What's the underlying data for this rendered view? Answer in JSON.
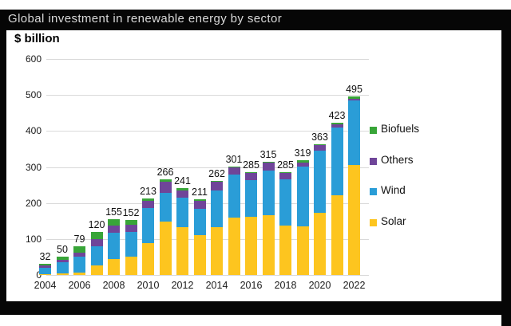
{
  "title_bar": {
    "title": "Global investment in renewable energy by sector"
  },
  "chart": {
    "unit_label": "$ billion",
    "colors": {
      "solar": "#fdc51f",
      "wind": "#2a9dd7",
      "others": "#6f4599",
      "biofuels": "#38a538",
      "gridline": "#d9d9d9",
      "title_text": "#d9d9d9",
      "frame": "#060606"
    }
  },
  "chart_data": {
    "type": "bar",
    "stacked": true,
    "title": "Global investment in renewable energy by sector",
    "unit": "$ billion",
    "xlabel": "",
    "ylabel": "$ billion",
    "ylim": [
      0,
      600
    ],
    "y_tick_step": 100,
    "y_ticks": [
      0,
      100,
      200,
      300,
      400,
      500,
      600
    ],
    "grid": true,
    "legend_position": "right",
    "legend_order": [
      "Biofuels",
      "Others",
      "Wind",
      "Solar"
    ],
    "categories": [
      2004,
      2005,
      2006,
      2007,
      2008,
      2009,
      2010,
      2011,
      2012,
      2013,
      2014,
      2015,
      2016,
      2017,
      2018,
      2019,
      2020,
      2021,
      2022
    ],
    "x_axis_labeled_years": [
      2004,
      2006,
      2008,
      2010,
      2012,
      2014,
      2016,
      2018,
      2020,
      2022
    ],
    "totals": [
      32,
      50,
      79,
      120,
      155,
      152,
      213,
      266,
      241,
      211,
      262,
      301,
      285,
      315,
      285,
      319,
      363,
      423,
      495
    ],
    "series": [
      {
        "name": "Solar",
        "color_key": "solar",
        "values": [
          3,
          5,
          7,
          26,
          44,
          52,
          89,
          148,
          133,
          110,
          133,
          159,
          161,
          166,
          137,
          134,
          172,
          221,
          305
        ]
      },
      {
        "name": "Wind",
        "color_key": "wind",
        "values": [
          18,
          30,
          43,
          54,
          74,
          67,
          96,
          80,
          81,
          74,
          102,
          121,
          102,
          123,
          128,
          168,
          173,
          189,
          180
        ]
      },
      {
        "name": "Others",
        "color_key": "others",
        "values": [
          5,
          7,
          13,
          20,
          20,
          20,
          20,
          30,
          20,
          21,
          24,
          18,
          20,
          24,
          18,
          11,
          16,
          8,
          5
        ]
      },
      {
        "name": "Biofuels",
        "color_key": "biofuels",
        "values": [
          6,
          8,
          16,
          20,
          17,
          13,
          8,
          8,
          7,
          6,
          3,
          3,
          2,
          2,
          2,
          6,
          2,
          5,
          5
        ]
      }
    ]
  }
}
